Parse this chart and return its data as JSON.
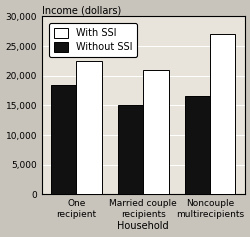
{
  "categories": [
    "One\nrecipient",
    "Married couple\nrecipients",
    "Noncouple\nmultirecipients"
  ],
  "with_ssi": [
    22500,
    21000,
    27000
  ],
  "without_ssi": [
    18500,
    15000,
    16500
  ],
  "bar_color_with": "#ffffff",
  "bar_color_without": "#111111",
  "bar_edgecolor": "#000000",
  "title": "Income (dollars)",
  "xlabel": "Household",
  "ylim": [
    0,
    30000
  ],
  "yticks": [
    0,
    5000,
    10000,
    15000,
    20000,
    25000,
    30000
  ],
  "ytick_labels": [
    "0",
    "5,000",
    "10,000",
    "15,000",
    "20,000",
    "25,000",
    "30,000"
  ],
  "outer_bg": "#c8c4bc",
  "plot_bg": "#e8e4dc",
  "legend_labels": [
    "With SSI",
    "Without SSI"
  ],
  "title_fontsize": 7,
  "axis_fontsize": 7,
  "tick_fontsize": 6.5,
  "legend_fontsize": 7,
  "bar_width": 0.38
}
